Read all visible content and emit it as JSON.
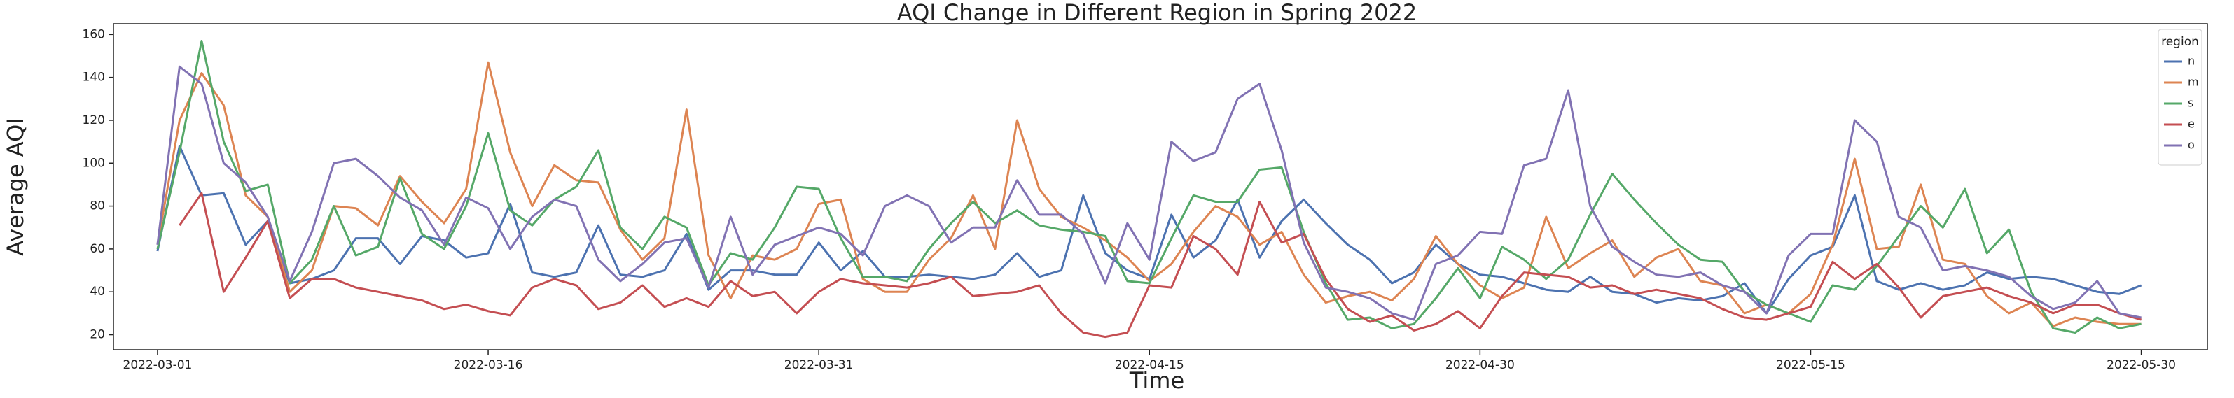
{
  "chart_data": {
    "type": "line",
    "title": "AQI Change in Different Region in Spring 2022",
    "x_label": "Time",
    "y_label": "Average AQI",
    "legend_title": "region",
    "legend_position": "upper right",
    "x": [
      "2022-03-01",
      "2022-03-02",
      "2022-03-03",
      "2022-03-04",
      "2022-03-05",
      "2022-03-06",
      "2022-03-07",
      "2022-03-08",
      "2022-03-09",
      "2022-03-10",
      "2022-03-11",
      "2022-03-12",
      "2022-03-13",
      "2022-03-14",
      "2022-03-15",
      "2022-03-16",
      "2022-03-17",
      "2022-03-18",
      "2022-03-19",
      "2022-03-20",
      "2022-03-21",
      "2022-03-22",
      "2022-03-23",
      "2022-03-24",
      "2022-03-25",
      "2022-03-26",
      "2022-03-27",
      "2022-03-28",
      "2022-03-29",
      "2022-03-30",
      "2022-03-31",
      "2022-04-01",
      "2022-04-02",
      "2022-04-03",
      "2022-04-04",
      "2022-04-05",
      "2022-04-06",
      "2022-04-07",
      "2022-04-08",
      "2022-04-09",
      "2022-04-10",
      "2022-04-11",
      "2022-04-12",
      "2022-04-13",
      "2022-04-14",
      "2022-04-15",
      "2022-04-16",
      "2022-04-17",
      "2022-04-18",
      "2022-04-19",
      "2022-04-20",
      "2022-04-21",
      "2022-04-22",
      "2022-04-23",
      "2022-04-24",
      "2022-04-25",
      "2022-04-26",
      "2022-04-27",
      "2022-04-28",
      "2022-04-29",
      "2022-04-30",
      "2022-05-01",
      "2022-05-02",
      "2022-05-03",
      "2022-05-04",
      "2022-05-05",
      "2022-05-06",
      "2022-05-07",
      "2022-05-08",
      "2022-05-09",
      "2022-05-10",
      "2022-05-11",
      "2022-05-12",
      "2022-05-13",
      "2022-05-14",
      "2022-05-15",
      "2022-05-16",
      "2022-05-17",
      "2022-05-18",
      "2022-05-19",
      "2022-05-20",
      "2022-05-21",
      "2022-05-22",
      "2022-05-23",
      "2022-05-24",
      "2022-05-25",
      "2022-05-26",
      "2022-05-27",
      "2022-05-28",
      "2022-05-29",
      "2022-05-30"
    ],
    "series": [
      {
        "name": "n",
        "color": "#4c72b0",
        "values": [
          59,
          108,
          85,
          86,
          62,
          73,
          44,
          46,
          50,
          65,
          65,
          53,
          66,
          64,
          56,
          58,
          81,
          49,
          47,
          49,
          71,
          48,
          47,
          50,
          67,
          41,
          50,
          50,
          48,
          48,
          63,
          50,
          59,
          47,
          47,
          48,
          47,
          46,
          48,
          58,
          47,
          50,
          85,
          58,
          50,
          46,
          76,
          56,
          64,
          83,
          56,
          73,
          83,
          72,
          62,
          55,
          44,
          49,
          62,
          53,
          48,
          47,
          44,
          41,
          40,
          47,
          40,
          39,
          35,
          37,
          36,
          38,
          44,
          30,
          46,
          57,
          61,
          85,
          45,
          41,
          44,
          41,
          43,
          49,
          46,
          47,
          46,
          43,
          40,
          39,
          43
        ]
      },
      {
        "name": "m",
        "color": "#dd8452",
        "values": [
          62,
          120,
          142,
          127,
          85,
          75,
          40,
          50,
          80,
          79,
          71,
          94,
          82,
          72,
          88,
          147,
          105,
          80,
          99,
          92,
          91,
          69,
          55,
          65,
          125,
          57,
          37,
          57,
          55,
          60,
          81,
          83,
          46,
          40,
          40,
          55,
          65,
          85,
          60,
          120,
          88,
          75,
          70,
          64,
          56,
          45,
          53,
          68,
          80,
          75,
          62,
          68,
          48,
          35,
          38,
          40,
          36,
          46,
          66,
          53,
          43,
          37,
          42,
          75,
          51,
          58,
          64,
          47,
          56,
          60,
          45,
          43,
          30,
          34,
          30,
          39,
          62,
          102,
          60,
          61,
          90,
          55,
          53,
          38,
          30,
          35,
          24,
          28,
          26,
          25,
          25
        ]
      },
      {
        "name": "s",
        "color": "#55a868",
        "values": [
          60,
          105,
          157,
          110,
          87,
          90,
          44,
          55,
          80,
          57,
          61,
          93,
          67,
          60,
          80,
          114,
          78,
          71,
          83,
          89,
          106,
          70,
          60,
          75,
          70,
          43,
          58,
          55,
          70,
          89,
          88,
          65,
          47,
          47,
          45,
          60,
          72,
          82,
          72,
          78,
          71,
          69,
          68,
          66,
          45,
          44,
          65,
          85,
          82,
          82,
          97,
          98,
          68,
          44,
          27,
          28,
          23,
          25,
          37,
          51,
          37,
          61,
          55,
          46,
          55,
          76,
          95,
          83,
          72,
          62,
          55,
          54,
          40,
          34,
          30,
          26,
          43,
          41,
          52,
          66,
          80,
          70,
          88,
          58,
          69,
          40,
          23,
          21,
          28,
          23,
          25
        ]
      },
      {
        "name": "e",
        "color": "#c44e52",
        "values": [
          null,
          71,
          86,
          40,
          56,
          73,
          37,
          46,
          46,
          42,
          40,
          38,
          36,
          32,
          34,
          31,
          29,
          42,
          46,
          43,
          32,
          35,
          43,
          33,
          37,
          33,
          45,
          38,
          40,
          30,
          40,
          46,
          44,
          43,
          42,
          44,
          47,
          38,
          39,
          40,
          43,
          30,
          21,
          19,
          21,
          43,
          42,
          66,
          60,
          48,
          82,
          63,
          67,
          46,
          32,
          26,
          29,
          22,
          25,
          31,
          23,
          38,
          49,
          48,
          47,
          42,
          43,
          39,
          41,
          39,
          37,
          32,
          28,
          27,
          30,
          33,
          54,
          46,
          53,
          42,
          28,
          38,
          40,
          42,
          38,
          35,
          30,
          34,
          34,
          30,
          27
        ]
      },
      {
        "name": "o",
        "color": "#8172b3",
        "values": [
          62,
          145,
          137,
          100,
          91,
          75,
          45,
          68,
          100,
          102,
          94,
          84,
          78,
          62,
          84,
          79,
          60,
          75,
          83,
          80,
          55,
          45,
          53,
          63,
          65,
          42,
          75,
          48,
          62,
          66,
          70,
          67,
          57,
          80,
          85,
          80,
          63,
          70,
          70,
          92,
          76,
          76,
          67,
          44,
          72,
          55,
          110,
          101,
          105,
          130,
          137,
          106,
          63,
          42,
          40,
          37,
          30,
          27,
          53,
          57,
          68,
          67,
          99,
          102,
          134,
          80,
          61,
          54,
          48,
          47,
          49,
          43,
          40,
          30,
          57,
          67,
          67,
          120,
          110,
          75,
          70,
          50,
          52,
          50,
          47,
          38,
          32,
          35,
          45,
          30,
          28
        ]
      }
    ],
    "xlim": [
      "2022-02-27",
      "2022-06-02"
    ],
    "xticks": [
      "2022-03-01",
      "2022-03-16",
      "2022-03-31",
      "2022-04-15",
      "2022-04-30",
      "2022-05-15",
      "2022-05-30"
    ],
    "ylim": [
      13,
      165
    ],
    "yticks": [
      20,
      40,
      60,
      80,
      100,
      120,
      140,
      160
    ],
    "grid": false
  }
}
